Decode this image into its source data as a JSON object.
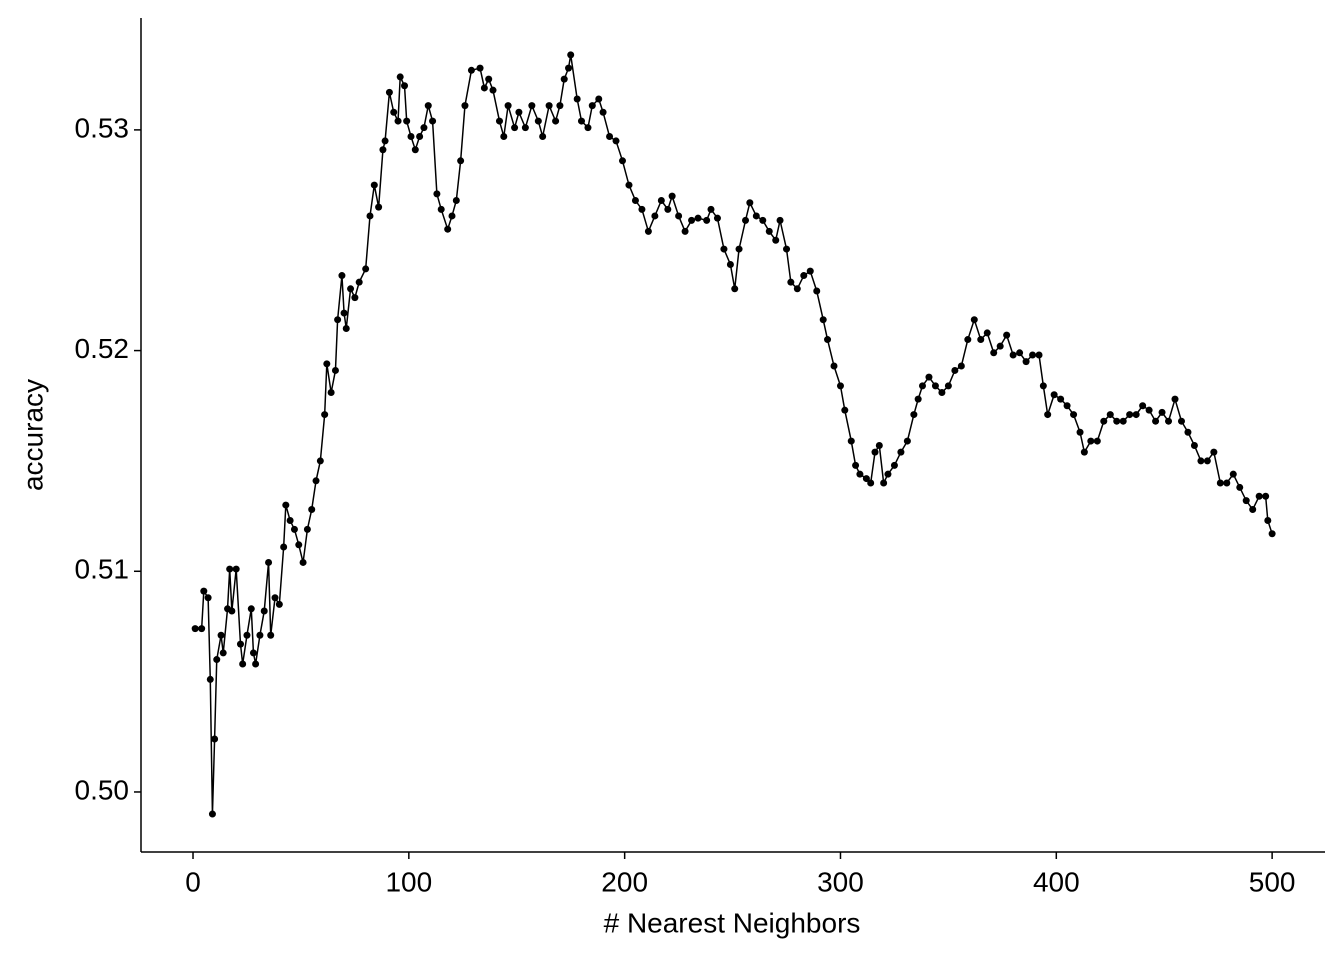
{
  "chart_data": {
    "type": "line",
    "xlabel": "# Nearest Neighbors",
    "ylabel": "accuracy",
    "color": "#000000",
    "markers": true,
    "x": [
      1,
      4,
      5,
      7,
      8,
      9,
      10,
      11,
      13,
      14,
      16,
      17,
      18,
      20,
      22,
      23,
      25,
      27,
      28,
      29,
      31,
      33,
      35,
      36,
      38,
      40,
      42,
      43,
      45,
      47,
      49,
      51,
      53,
      55,
      57,
      59,
      61,
      62,
      64,
      66,
      67,
      69,
      70,
      71,
      73,
      75,
      77,
      80,
      82,
      84,
      86,
      88,
      89,
      91,
      93,
      95,
      96,
      98,
      99,
      101,
      103,
      105,
      107,
      109,
      111,
      113,
      115,
      118,
      120,
      122,
      124,
      126,
      129,
      133,
      135,
      137,
      139,
      142,
      144,
      146,
      149,
      151,
      154,
      157,
      160,
      162,
      165,
      168,
      170,
      172,
      174,
      175,
      178,
      180,
      183,
      185,
      188,
      190,
      193,
      196,
      199,
      202,
      205,
      208,
      211,
      214,
      217,
      220,
      222,
      225,
      228,
      231,
      234,
      238,
      240,
      243,
      246,
      249,
      251,
      253,
      256,
      258,
      261,
      264,
      267,
      270,
      272,
      275,
      277,
      280,
      283,
      286,
      289,
      292,
      294,
      297,
      300,
      302,
      305,
      307,
      309,
      312,
      314,
      316,
      318,
      320,
      322,
      325,
      328,
      331,
      334,
      336,
      338,
      341,
      344,
      347,
      350,
      353,
      356,
      359,
      362,
      365,
      368,
      371,
      374,
      377,
      380,
      383,
      386,
      389,
      392,
      394,
      396,
      399,
      402,
      405,
      408,
      411,
      413,
      416,
      419,
      422,
      425,
      428,
      431,
      434,
      437,
      440,
      443,
      446,
      449,
      452,
      455,
      458,
      461,
      464,
      467,
      470,
      473,
      476,
      479,
      482,
      485,
      488,
      491,
      494,
      497,
      498,
      500
    ],
    "values": [
      0.5074,
      0.5074,
      0.5091,
      0.5088,
      0.5051,
      0.499,
      0.5024,
      0.506,
      0.5071,
      0.5063,
      0.5083,
      0.5101,
      0.5082,
      0.5101,
      0.5067,
      0.5058,
      0.5071,
      0.5083,
      0.5063,
      0.5058,
      0.5071,
      0.5082,
      0.5104,
      0.5071,
      0.5088,
      0.5085,
      0.5111,
      0.513,
      0.5123,
      0.5119,
      0.5112,
      0.5104,
      0.5119,
      0.5128,
      0.5141,
      0.515,
      0.5171,
      0.5194,
      0.5181,
      0.5191,
      0.5214,
      0.5234,
      0.5217,
      0.521,
      0.5228,
      0.5224,
      0.5231,
      0.5237,
      0.5261,
      0.5275,
      0.5265,
      0.5291,
      0.5295,
      0.5317,
      0.5308,
      0.5304,
      0.5324,
      0.532,
      0.5304,
      0.5297,
      0.5291,
      0.5297,
      0.5301,
      0.5311,
      0.5304,
      0.5271,
      0.5264,
      0.5255,
      0.5261,
      0.5268,
      0.5286,
      0.5311,
      0.5327,
      0.5328,
      0.5319,
      0.5323,
      0.5318,
      0.5304,
      0.5297,
      0.5311,
      0.5301,
      0.5308,
      0.5301,
      0.5311,
      0.5304,
      0.5297,
      0.5311,
      0.5304,
      0.5311,
      0.5323,
      0.5328,
      0.5334,
      0.5314,
      0.5304,
      0.5301,
      0.5311,
      0.5314,
      0.5308,
      0.5297,
      0.5295,
      0.5286,
      0.5275,
      0.5268,
      0.5264,
      0.5254,
      0.5261,
      0.5268,
      0.5264,
      0.527,
      0.5261,
      0.5254,
      0.5259,
      0.526,
      0.5259,
      0.5264,
      0.526,
      0.5246,
      0.5239,
      0.5228,
      0.5246,
      0.5259,
      0.5267,
      0.5261,
      0.5259,
      0.5254,
      0.525,
      0.5259,
      0.5246,
      0.5231,
      0.5228,
      0.5234,
      0.5236,
      0.5227,
      0.5214,
      0.5205,
      0.5193,
      0.5184,
      0.5173,
      0.5159,
      0.5148,
      0.5144,
      0.5142,
      0.514,
      0.5154,
      0.5157,
      0.514,
      0.5144,
      0.5148,
      0.5154,
      0.5159,
      0.5171,
      0.5178,
      0.5184,
      0.5188,
      0.5184,
      0.5181,
      0.5184,
      0.5191,
      0.5193,
      0.5205,
      0.5214,
      0.5205,
      0.5208,
      0.5199,
      0.5202,
      0.5207,
      0.5198,
      0.5199,
      0.5195,
      0.5198,
      0.5198,
      0.5184,
      0.5171,
      0.518,
      0.5178,
      0.5175,
      0.5171,
      0.5163,
      0.5154,
      0.5159,
      0.5159,
      0.5168,
      0.5171,
      0.5168,
      0.5168,
      0.5171,
      0.5171,
      0.5175,
      0.5173,
      0.5168,
      0.5172,
      0.5168,
      0.5178,
      0.5168,
      0.5163,
      0.5157,
      0.515,
      0.515,
      0.5154,
      0.514,
      0.514,
      0.5144,
      0.5138,
      0.5132,
      0.5128,
      0.5134,
      0.5134,
      0.5123,
      0.5117
    ],
    "xlim": [
      -24.1,
      524.5
    ],
    "xticks": [
      0,
      100,
      200,
      300,
      400,
      500
    ],
    "ylim": [
      0.49728,
      0.53507
    ],
    "yticks": [
      {
        "value": 0.5,
        "label": "0.50"
      },
      0.51,
      0.52,
      0.53
    ],
    "grid": false
  }
}
